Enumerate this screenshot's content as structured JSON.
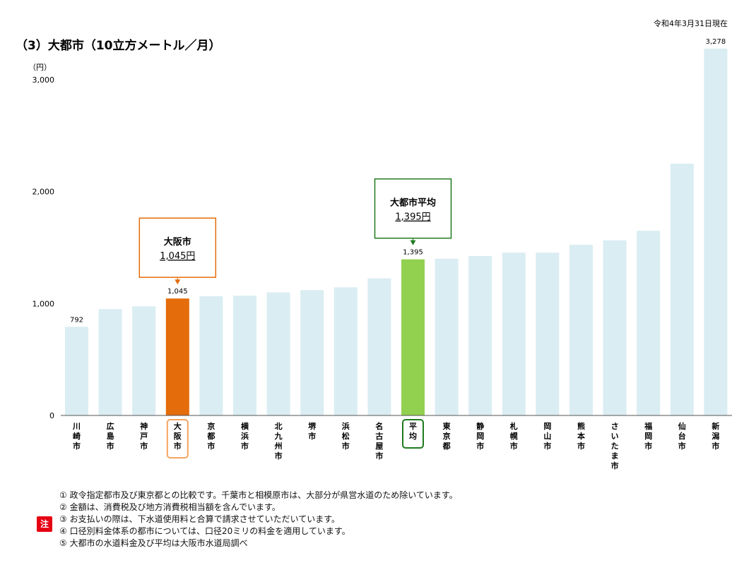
{
  "as_of_date": "令和4年3月31日現在",
  "chart_data": {
    "type": "bar",
    "title": "（3）大都市（10立方メートル／月）",
    "ylabel": "（円）",
    "ylim": [
      0,
      3000
    ],
    "yticks": [
      "0",
      "1,000",
      "2,000",
      "3,000"
    ],
    "categories": [
      "川崎市",
      "広島市",
      "神戸市",
      "大阪市",
      "京都市",
      "横浜市",
      "北九州市",
      "堺市",
      "浜松市",
      "名古屋市",
      "平均",
      "東京都",
      "静岡市",
      "札幌市",
      "岡山市",
      "熊本市",
      "さいたま市",
      "福岡市",
      "仙台市",
      "新潟市"
    ],
    "values": [
      792,
      950,
      975,
      1045,
      1065,
      1070,
      1100,
      1120,
      1145,
      1225,
      1395,
      1400,
      1425,
      1455,
      1455,
      1525,
      1565,
      1650,
      2250,
      3278
    ],
    "data_labels": {
      "0": "792",
      "3": "1,045",
      "10": "1,395",
      "19": "3,278"
    },
    "highlight": {
      "3": "#e46c0a",
      "10": "#92d050"
    },
    "default_color": "#daedf2",
    "category_border": {
      "3": "#f4a460",
      "10": "#1e7a1e"
    },
    "callouts": [
      {
        "index": 3,
        "name": "大阪市",
        "value_text": "1,045円",
        "color": "#e46c0a"
      },
      {
        "index": 10,
        "name": "大都市平均",
        "value_text": "1,395円",
        "color": "#1e7a1e"
      }
    ]
  },
  "notes": {
    "badge": "注",
    "items": [
      "① 政令指定都市及び東京都との比較です。千葉市と相模原市は、大部分が県営水道のため除いています。",
      "② 金額は、消費税及び地方消費税相当額を含んでいます。",
      "③ お支払いの際は、下水道使用料と合算で請求させていただいています。",
      "④ 口径別料金体系の都市については、口径20ミリの料金を適用しています。",
      "⑤ 大都市の水道料金及び平均は大阪市水道局調べ"
    ]
  }
}
